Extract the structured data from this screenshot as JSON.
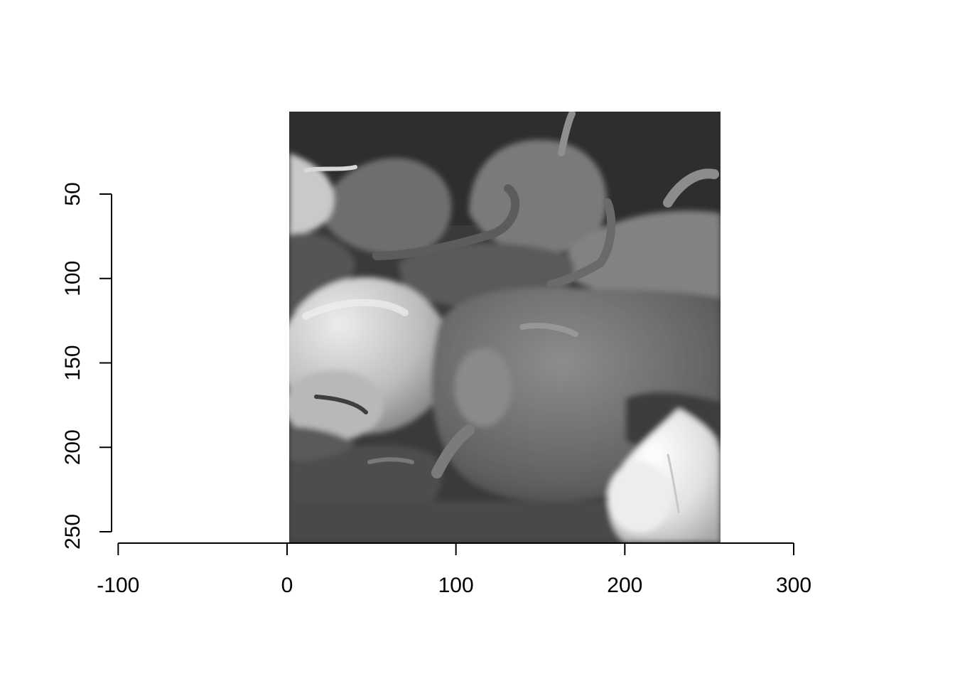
{
  "chart_data": {
    "type": "heatmap",
    "image": {
      "content": "grayscale photo of bell peppers, chili peppers and garlic bulbs",
      "colormap": "grayscale",
      "x_range": [
        0,
        256
      ],
      "y_range": [
        0,
        256
      ],
      "y_inverted": true
    },
    "x_axis": {
      "ticks": [
        -100,
        0,
        100,
        200,
        300
      ],
      "tick_labels": [
        "-100",
        "0",
        "100",
        "200",
        "300"
      ],
      "range": [
        -100,
        300
      ]
    },
    "y_axis": {
      "ticks": [
        50,
        100,
        150,
        200,
        250
      ],
      "tick_labels": [
        "50",
        "100",
        "150",
        "200",
        "250"
      ],
      "range": [
        50,
        250
      ],
      "inverted": true
    },
    "title": "",
    "xlabel": "",
    "ylabel": "",
    "grid": false,
    "legend": "none"
  }
}
